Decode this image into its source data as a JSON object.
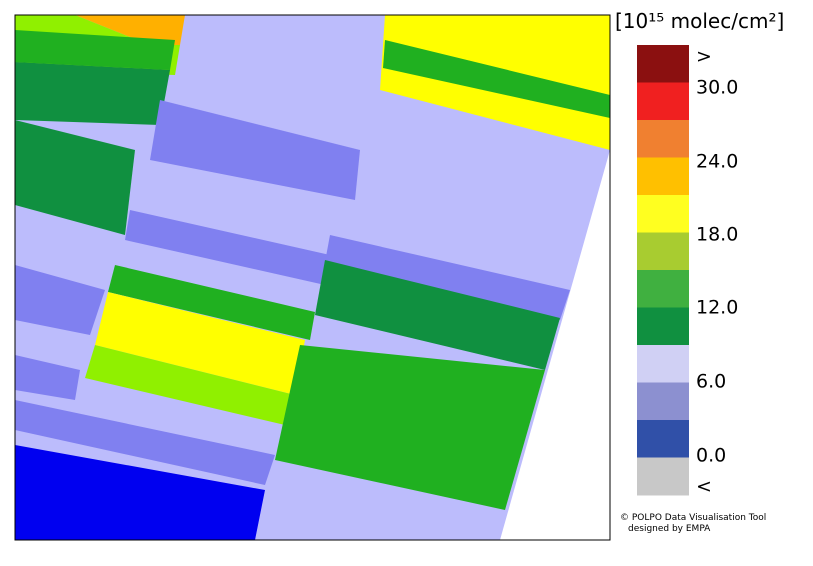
{
  "legend": {
    "title": "[10¹⁵ molec/cm²]",
    "labels": [
      ">",
      "30.0",
      "24.0",
      "18.0",
      "12.0",
      "6.0",
      "0.0",
      "<"
    ],
    "colors": [
      "#8b1010",
      "#f02020",
      "#f08030",
      "#ffc000",
      "#ffff20",
      "#a8cc30",
      "#40b040",
      "#109040",
      "#d0d0f4",
      "#8c90d0",
      "#3050a8",
      "#c8c8c8"
    ]
  },
  "credits": [
    "© POLPO Data Visualisation Tool",
    "designed by EMPA"
  ]
}
